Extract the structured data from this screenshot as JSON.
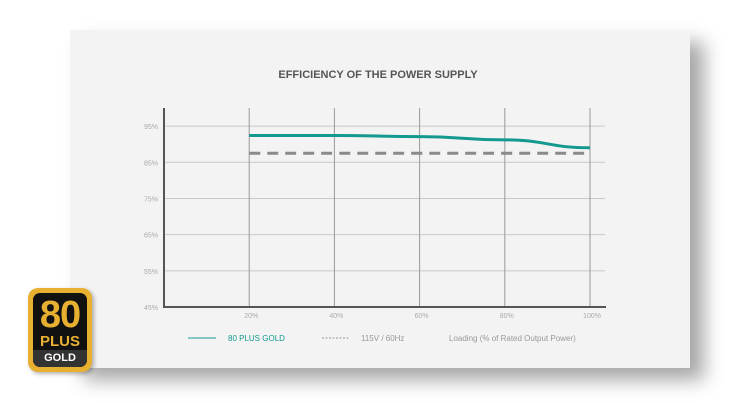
{
  "chart_data": {
    "type": "line",
    "title": "EFFICIENCY OF THE POWER SUPPLY",
    "xlabel": "Loading (% of Rated Output Power)",
    "ylabel": "",
    "x": [
      20,
      40,
      60,
      80,
      100
    ],
    "x_tick_labels": [
      "20%",
      "40%",
      "60%",
      "80%",
      "100%"
    ],
    "y_tick_values": [
      45,
      55,
      65,
      75,
      85,
      95
    ],
    "y_tick_labels": [
      "45%",
      "55%",
      "65%",
      "75%",
      "85%",
      "95%"
    ],
    "xlim": [
      0,
      100
    ],
    "ylim": [
      45,
      100
    ],
    "grid": true,
    "legend_position": "bottom",
    "series": [
      {
        "name": "80 PLUS GOLD",
        "values": [
          92.4,
          92.4,
          92.1,
          91.2,
          89.0
        ],
        "color": "#14998f",
        "style": "solid"
      },
      {
        "name": "115V / 60Hz",
        "values": [
          87.5,
          87.5,
          87.5,
          87.5,
          87.5
        ],
        "color": "#8a8a8a",
        "style": "dashed"
      }
    ]
  },
  "logo": {
    "top": "80",
    "middle": "PLUS",
    "bottom": "GOLD"
  }
}
